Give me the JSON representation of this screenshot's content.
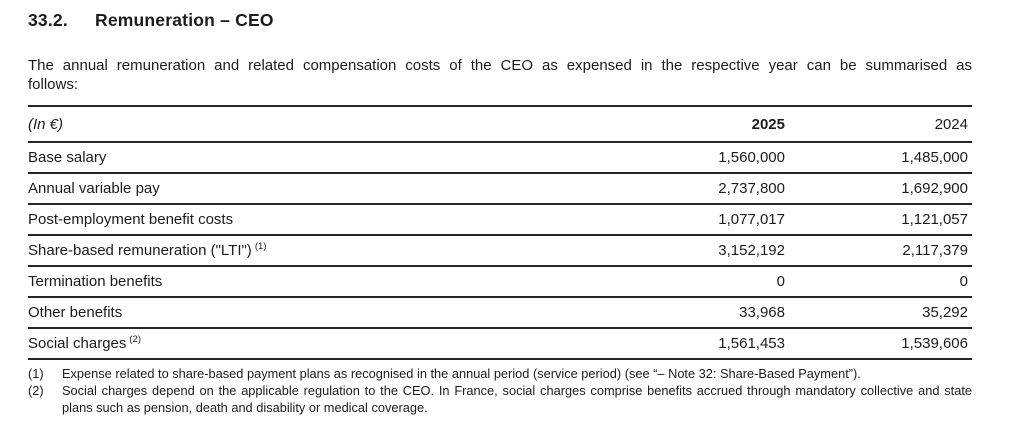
{
  "heading": {
    "number": "33.2.",
    "title": "Remuneration – CEO"
  },
  "intro_lines": [
    "The annual remuneration and related compensation costs of the CEO as expensed in the respective year can be summarised as",
    "follows:"
  ],
  "table": {
    "unit_label": "(In €)",
    "columns": [
      "2025",
      "2024"
    ],
    "rows": [
      {
        "label": "Base salary",
        "sup": "",
        "v2025": "1,560,000",
        "v2024": "1,485,000"
      },
      {
        "label": "Annual variable pay",
        "sup": "",
        "v2025": "2,737,800",
        "v2024": "1,692,900"
      },
      {
        "label": "Post-employment benefit costs",
        "sup": "",
        "v2025": "1,077,017",
        "v2024": "1,121,057"
      },
      {
        "label": "Share-based remuneration (\"LTI\")",
        "sup": "(1)",
        "v2025": "3,152,192",
        "v2024": "2,117,379"
      },
      {
        "label": "Termination benefits",
        "sup": "",
        "v2025": "0",
        "v2024": "0"
      },
      {
        "label": "Other benefits",
        "sup": "",
        "v2025": "33,968",
        "v2024": "35,292"
      },
      {
        "label": "Social charges",
        "sup": "(2)",
        "v2025": "1,561,453",
        "v2024": "1,539,606"
      }
    ]
  },
  "footnotes": [
    {
      "marker": "(1)",
      "text": "Expense related to share-based payment plans as recognised in the annual period (service period) (see “– Note 32: Share-Based Payment”)."
    },
    {
      "marker": "(2)",
      "text": "Social charges depend on the applicable regulation to the CEO. In France, social charges comprise benefits accrued through mandatory collective and state plans such as pension, death and disability or medical coverage."
    }
  ]
}
